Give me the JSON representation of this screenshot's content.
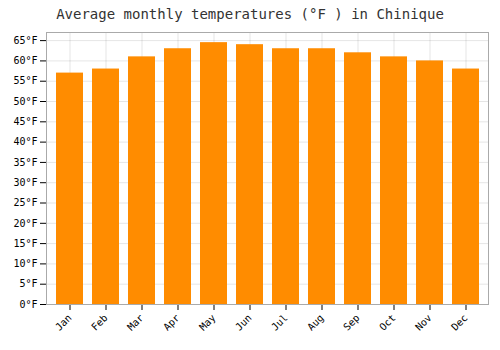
{
  "chart_data": {
    "type": "bar",
    "title": "Average monthly temperatures (°F ) in Chinique",
    "categories": [
      "Jan",
      "Feb",
      "Mar",
      "Apr",
      "May",
      "Jun",
      "Jul",
      "Aug",
      "Sep",
      "Oct",
      "Nov",
      "Dec"
    ],
    "values": [
      57,
      58,
      61,
      63,
      64.5,
      64,
      63,
      63,
      62,
      61,
      60,
      58
    ],
    "color": "#FF8C00",
    "ylim": [
      0,
      67
    ],
    "yticks": [
      {
        "value": 0,
        "label": "0°F"
      },
      {
        "value": 5,
        "label": "5°F"
      },
      {
        "value": 10,
        "label": "10°F"
      },
      {
        "value": 15,
        "label": "15°F"
      },
      {
        "value": 20,
        "label": "20°F"
      },
      {
        "value": 25,
        "label": "25°F"
      },
      {
        "value": 30,
        "label": "30°F"
      },
      {
        "value": 35,
        "label": "35°F"
      },
      {
        "value": 40,
        "label": "40°F"
      },
      {
        "value": 45,
        "label": "45°F"
      },
      {
        "value": 50,
        "label": "50°F"
      },
      {
        "value": 55,
        "label": "55°F"
      },
      {
        "value": 60,
        "label": "60°F"
      },
      {
        "value": 65,
        "label": "65°F"
      }
    ],
    "grid": true
  }
}
